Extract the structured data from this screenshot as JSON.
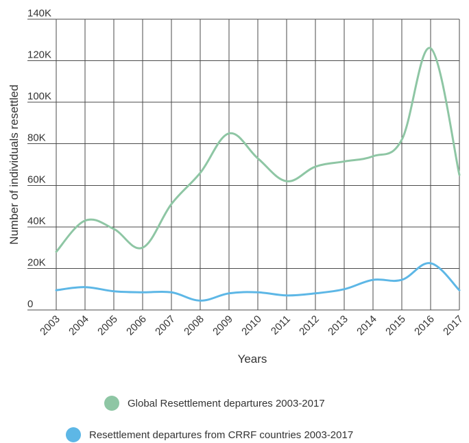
{
  "chart_data": {
    "type": "line",
    "categories": [
      "2003",
      "2004",
      "2005",
      "2006",
      "2007",
      "2008",
      "2009",
      "2010",
      "2011",
      "2012",
      "2013",
      "2014",
      "2015",
      "2016",
      "2017"
    ],
    "series": [
      {
        "name": "Global Resettlement departures 2003-2017",
        "color": "#8ec6a4",
        "values": [
          28000,
          43000,
          39000,
          30000,
          51000,
          66000,
          85000,
          73000,
          62000,
          69000,
          71500,
          74000,
          82000,
          126000,
          65000
        ]
      },
      {
        "name": "Resettlement departures from CRRF countries 2003-2017",
        "color": "#5db7e6",
        "values": [
          9500,
          11000,
          9000,
          8500,
          8500,
          4500,
          8000,
          8500,
          7000,
          8000,
          10000,
          14500,
          14500,
          22500,
          9500
        ]
      }
    ],
    "xlabel": "Years",
    "ylabel": "Number of individuals resettled",
    "ylim": [
      0,
      140000
    ],
    "yticks": [
      0,
      20000,
      40000,
      60000,
      80000,
      100000,
      120000,
      140000
    ],
    "ytick_labels": [
      "0",
      "20K",
      "40K",
      "60K",
      "80K",
      "100K",
      "120K",
      "140K"
    ],
    "grid": true,
    "legend_position": "bottom"
  }
}
